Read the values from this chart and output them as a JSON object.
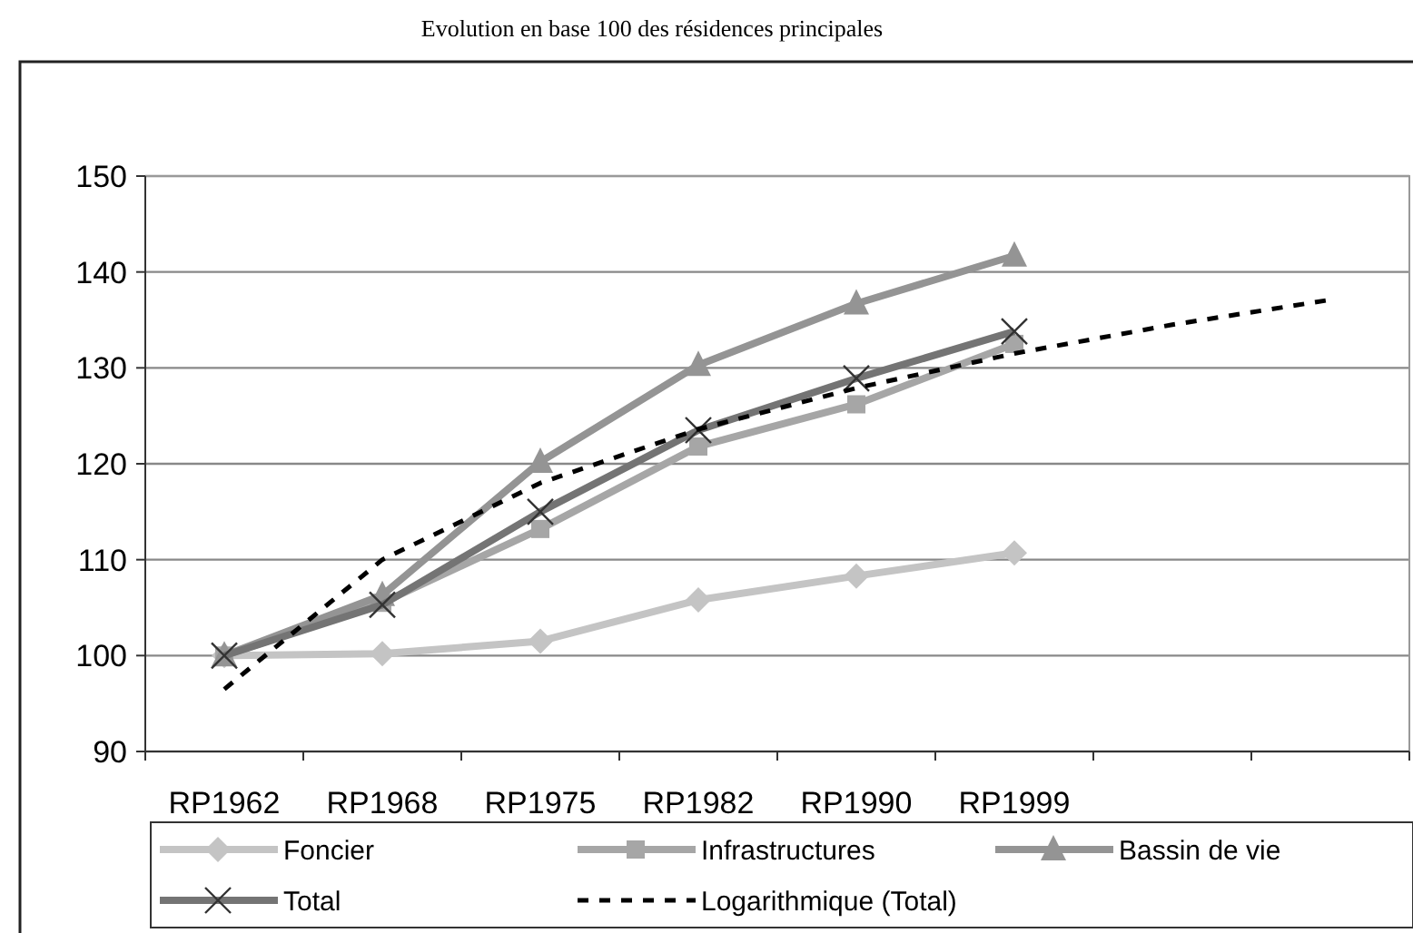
{
  "chart_data": {
    "type": "line",
    "title": "Evolution en base 100 des résidences principales",
    "categories": [
      "RP1962",
      "RP1968",
      "RP1975",
      "RP1982",
      "RP1990",
      "RP1999",
      null,
      null
    ],
    "ylim": [
      90,
      150
    ],
    "yticks": [
      90,
      100,
      110,
      120,
      130,
      140,
      150
    ],
    "grid": "y",
    "legend": "bottom",
    "series": [
      {
        "name": "Foncier",
        "color": "#c4c4c4",
        "marker": "diamond",
        "values": [
          100,
          100.2,
          101.5,
          105.8,
          108.3,
          110.7,
          null,
          null
        ]
      },
      {
        "name": "Infrastructures",
        "color": "#a6a6a6",
        "marker": "square",
        "values": [
          100,
          105.5,
          113.2,
          121.8,
          126.2,
          132.5,
          null,
          null
        ]
      },
      {
        "name": "Bassin de vie",
        "color": "#949494",
        "marker": "triangle",
        "values": [
          100,
          106.3,
          120.2,
          130.3,
          136.7,
          141.7,
          null,
          null
        ]
      },
      {
        "name": "Total",
        "color": "#747474",
        "marker": "cross",
        "values": [
          100,
          105.3,
          115,
          123.5,
          128.9,
          133.8,
          null,
          null
        ]
      },
      {
        "name": "Logarithmique (Total)",
        "color": "#000000",
        "marker": "none",
        "line_style": "dashed",
        "values": [
          96.5,
          110,
          118,
          123.6,
          127.9,
          131.5,
          134.5,
          137.1
        ]
      }
    ]
  }
}
